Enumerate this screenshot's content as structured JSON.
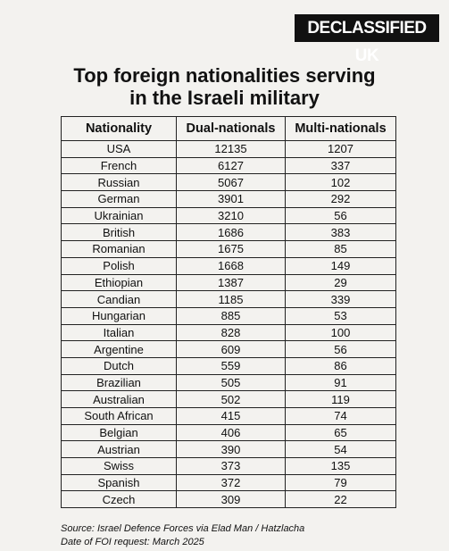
{
  "brand": "DECLASSIFIED UK",
  "title_lines": [
    "Top foreign nationalities serving",
    "in the Israeli military"
  ],
  "table": {
    "columns": [
      "Nationality",
      "Dual-nationals",
      "Multi-nationals"
    ],
    "rows": [
      [
        "USA",
        12135,
        1207
      ],
      [
        "French",
        6127,
        337
      ],
      [
        "Russian",
        5067,
        102
      ],
      [
        "German",
        3901,
        292
      ],
      [
        "Ukrainian",
        3210,
        56
      ],
      [
        "British",
        1686,
        383
      ],
      [
        "Romanian",
        1675,
        85
      ],
      [
        "Polish",
        1668,
        149
      ],
      [
        "Ethiopian",
        1387,
        29
      ],
      [
        "Candian",
        1185,
        339
      ],
      [
        "Hungarian",
        885,
        53
      ],
      [
        "Italian",
        828,
        100
      ],
      [
        "Argentine",
        609,
        56
      ],
      [
        "Dutch",
        559,
        86
      ],
      [
        "Brazilian",
        505,
        91
      ],
      [
        "Australian",
        502,
        119
      ],
      [
        "South African",
        415,
        74
      ],
      [
        "Belgian",
        406,
        65
      ],
      [
        "Austrian",
        390,
        54
      ],
      [
        "Swiss",
        373,
        135
      ],
      [
        "Spanish",
        372,
        79
      ],
      [
        "Czech",
        309,
        22
      ]
    ]
  },
  "source": "Source: Israel Defence Forces via Elad Man / Hatzlacha",
  "date_note": "Date of FOI request: March 2025"
}
